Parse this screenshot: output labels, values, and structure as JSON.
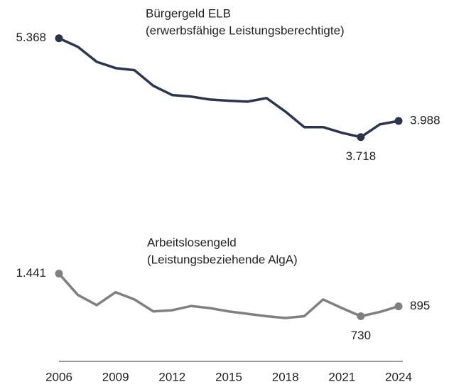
{
  "chart_data": {
    "type": "line",
    "x": [
      2006,
      2007,
      2008,
      2009,
      2010,
      2011,
      2012,
      2013,
      2014,
      2015,
      2016,
      2017,
      2018,
      2019,
      2020,
      2021,
      2022,
      2023,
      2024
    ],
    "xlim": [
      2006,
      2024
    ],
    "xticks": [
      2006,
      2009,
      2012,
      2015,
      2018,
      2021,
      2024
    ],
    "ylim": [
      0,
      6000
    ],
    "series": [
      {
        "name": [
          "Bürgergeld ELB",
          "(erwerbsfähige Leistungsberechtigte)"
        ],
        "color": "#2b3550",
        "values": [
          5368,
          5225,
          4975,
          4870,
          4835,
          4575,
          4420,
          4395,
          4345,
          4325,
          4310,
          4370,
          4145,
          3885,
          3885,
          3790,
          3718,
          3930,
          3988
        ],
        "value_labels": [
          "5.368",
          null,
          null,
          null,
          null,
          null,
          null,
          null,
          null,
          null,
          null,
          null,
          null,
          null,
          null,
          null,
          "3.718",
          null,
          "3.988"
        ]
      },
      {
        "name": [
          "Arbeitslosengeld",
          "(Leistungsbeziehende AlgA)"
        ],
        "color": "#808080",
        "values": [
          1441,
          1085,
          915,
          1130,
          1010,
          810,
          830,
          900,
          865,
          810,
          770,
          730,
          700,
          730,
          1010,
          865,
          730,
          800,
          895
        ],
        "value_labels": [
          "1.441",
          null,
          null,
          null,
          null,
          null,
          null,
          null,
          null,
          null,
          null,
          null,
          null,
          null,
          null,
          null,
          "730",
          null,
          "895"
        ]
      }
    ]
  }
}
